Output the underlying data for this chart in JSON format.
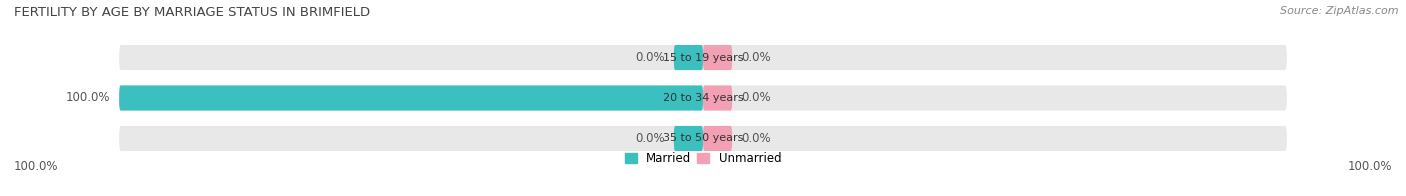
{
  "title": "FERTILITY BY AGE BY MARRIAGE STATUS IN BRIMFIELD",
  "source": "Source: ZipAtlas.com",
  "categories": [
    "15 to 19 years",
    "20 to 34 years",
    "35 to 50 years"
  ],
  "married_values": [
    0.0,
    100.0,
    0.0
  ],
  "unmarried_values": [
    0.0,
    0.0,
    0.0
  ],
  "married_color": "#3bbfbf",
  "unmarried_color": "#f4a0b4",
  "bar_bg_color": "#e8e8e8",
  "bar_height": 0.62,
  "xlim": 100.0,
  "title_fontsize": 9.5,
  "label_fontsize": 8.5,
  "tick_fontsize": 8.5,
  "source_fontsize": 8,
  "category_fontsize": 8,
  "legend_fontsize": 8.5,
  "left_axis_label": "100.0%",
  "right_axis_label": "100.0%",
  "fig_width": 14.06,
  "fig_height": 1.96,
  "background_color": "#ffffff",
  "married_label_color": "#ffffff",
  "value_label_color": "#555555",
  "title_color": "#444444",
  "source_color": "#888888"
}
